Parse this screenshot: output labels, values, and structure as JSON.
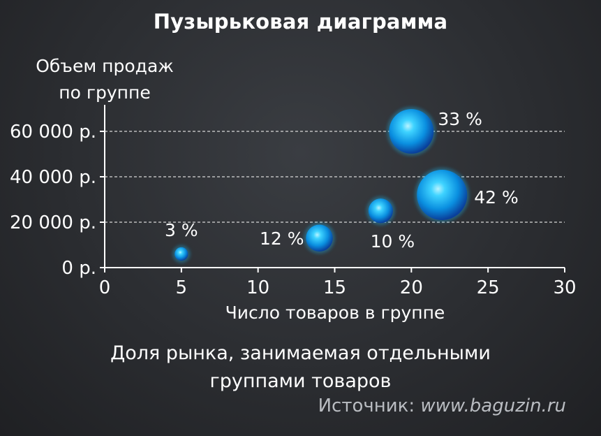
{
  "chart_data": {
    "type": "scatter",
    "title": "Пузырьковая диаграмма",
    "ylabel_lines": [
      "Объем продаж",
      "по группе"
    ],
    "xlabel": "Число товаров в группе",
    "xlim": [
      0,
      30
    ],
    "ylim": [
      0,
      60000
    ],
    "x_ticks": [
      "0",
      "5",
      "10",
      "15",
      "20",
      "25",
      "30"
    ],
    "y_ticks": [
      "0 р.",
      "20 000 р.",
      "40 000 р.",
      "60 000 р."
    ],
    "grid": true,
    "points": [
      {
        "x": 5,
        "y": 6000,
        "size": 3,
        "label": "3 %"
      },
      {
        "x": 14,
        "y": 13000,
        "size": 12,
        "label": "12 %"
      },
      {
        "x": 18,
        "y": 25000,
        "size": 10,
        "label": "10 %"
      },
      {
        "x": 20,
        "y": 60000,
        "size": 33,
        "label": "33 %"
      },
      {
        "x": 22,
        "y": 32000,
        "size": 42,
        "label": "42 %"
      }
    ],
    "bubble_color": "#1ab8f0"
  },
  "caption_lines": [
    "Доля рынка, занимаемая отдельными",
    "группами товаров"
  ],
  "source": {
    "prefix": "Источник: ",
    "url": "www.baguzin.ru"
  }
}
